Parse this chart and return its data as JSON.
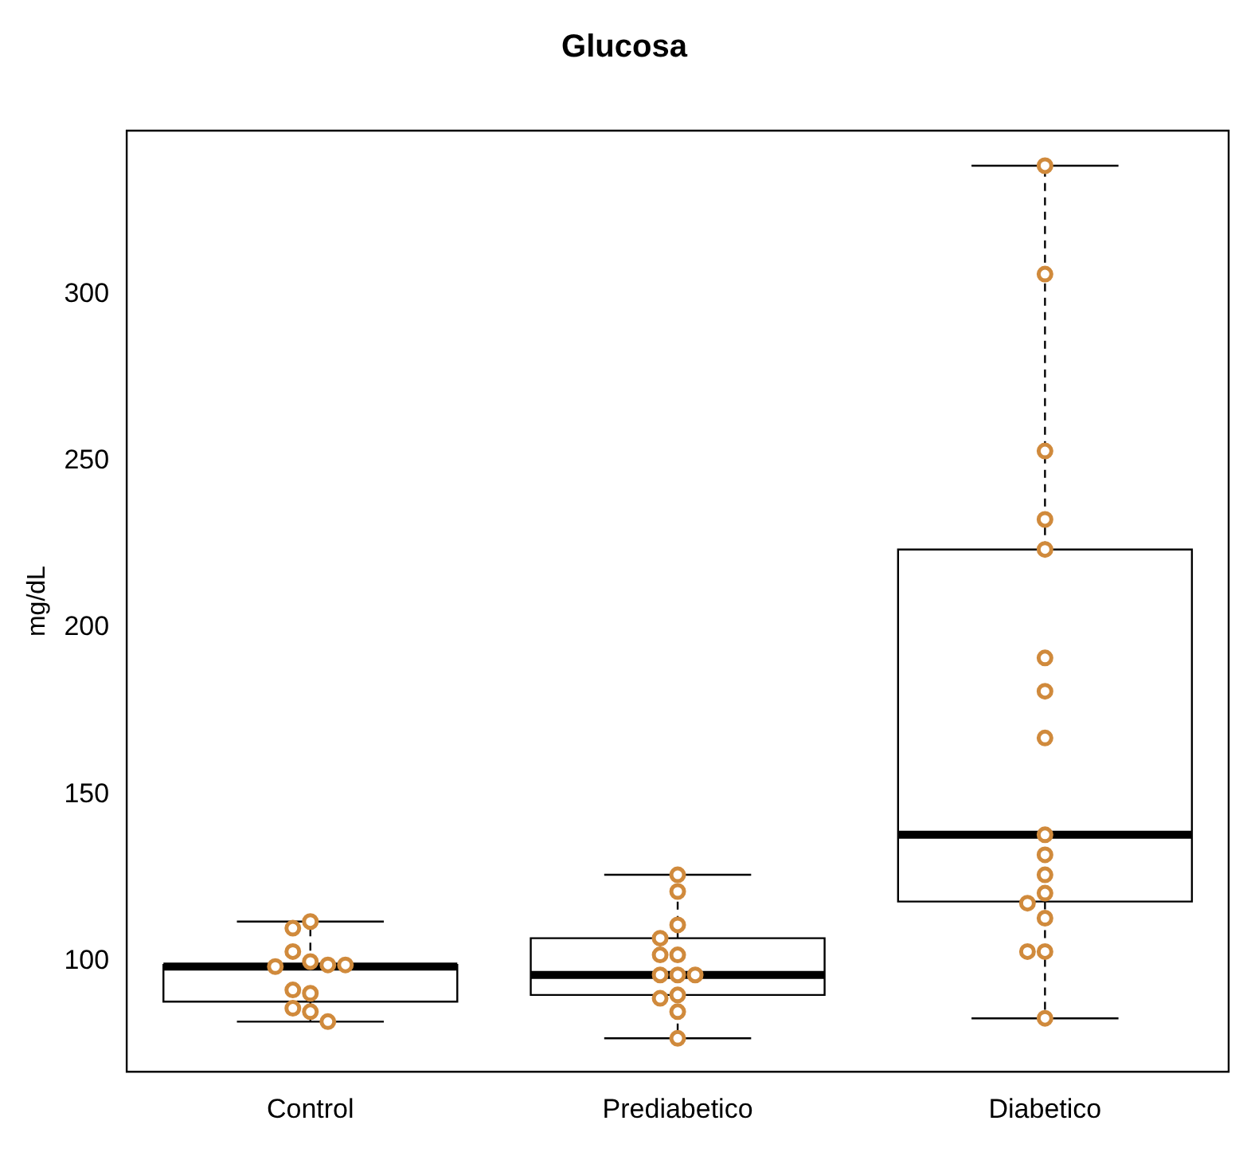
{
  "chart_data": {
    "type": "box",
    "title": "Glucosa",
    "ylabel": "mg/dL",
    "categories": [
      "Control",
      "Prediabetico",
      "Diabetico"
    ],
    "boxes": [
      {
        "low": 82,
        "q1": 88,
        "median": 98.5,
        "q3": 99,
        "high": 112
      },
      {
        "low": 77,
        "q1": 90,
        "median": 96,
        "q3": 107,
        "high": 126
      },
      {
        "low": 83,
        "q1": 118,
        "median": 138,
        "q3": 223.5,
        "high": 338.5
      }
    ],
    "series": [
      {
        "type": "scatter",
        "color": "#d08a3c",
        "x": [
          "Control",
          "Control",
          "Control",
          "Control",
          "Control",
          "Control",
          "Control",
          "Control",
          "Control",
          "Control",
          "Control",
          "Control",
          "Prediabetico",
          "Prediabetico",
          "Prediabetico",
          "Prediabetico",
          "Prediabetico",
          "Prediabetico",
          "Prediabetico",
          "Prediabetico",
          "Prediabetico",
          "Prediabetico",
          "Prediabetico",
          "Prediabetico",
          "Prediabetico",
          "Diabetico",
          "Diabetico",
          "Diabetico",
          "Diabetico",
          "Diabetico",
          "Diabetico",
          "Diabetico",
          "Diabetico",
          "Diabetico",
          "Diabetico",
          "Diabetico",
          "Diabetico",
          "Diabetico",
          "Diabetico",
          "Diabetico",
          "Diabetico",
          "Diabetico"
        ],
        "values": [
          112,
          110,
          100,
          103,
          99,
          98.5,
          99,
          90.5,
          91.5,
          86,
          85,
          82,
          126,
          121,
          111,
          107,
          102,
          102,
          96,
          96,
          96,
          90,
          89,
          85,
          77,
          338.5,
          306,
          253,
          232.5,
          223.5,
          191,
          181,
          167,
          138,
          132,
          126,
          120.5,
          117.5,
          113,
          103,
          103,
          83
        ]
      }
    ],
    "ylim": [
      67,
      349
    ],
    "yticks": [
      100,
      150,
      200,
      250,
      300
    ],
    "marker": "circle",
    "grid": false
  }
}
